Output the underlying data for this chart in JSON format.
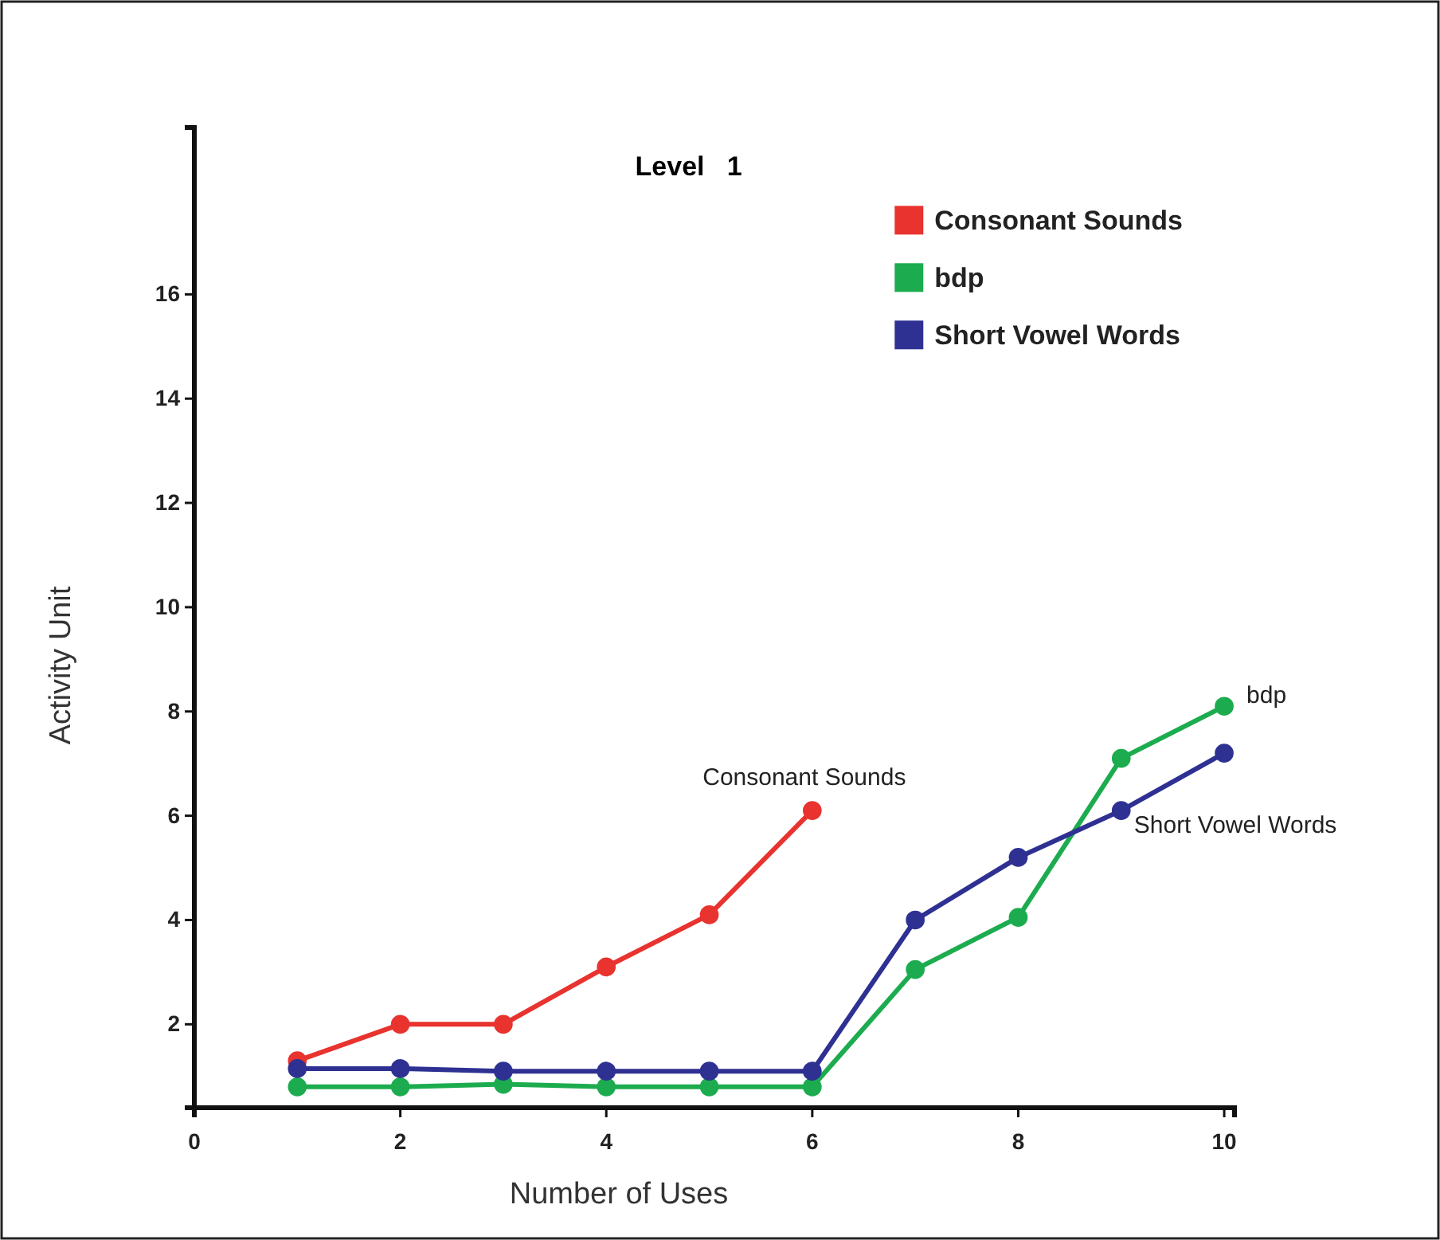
{
  "chart_data": {
    "type": "line",
    "title": "Level   1",
    "xlabel": "Number of Uses",
    "ylabel": "Activity Unit",
    "xlim": [
      0,
      10.1
    ],
    "xticks": [
      0,
      2,
      4,
      6,
      8,
      10
    ],
    "ylim": [
      0.4,
      19.2
    ],
    "yticks": [
      2,
      4,
      6,
      8,
      10,
      12,
      14,
      16
    ],
    "legend": "top right",
    "marker": "circle",
    "line_style": "solid",
    "grid": false,
    "series": [
      {
        "name": "Consonant Sounds",
        "color": "#e8332f",
        "x": [
          1,
          2,
          3,
          4,
          5,
          6
        ],
        "values": [
          1.3,
          2.0,
          2.0,
          3.1,
          4.1,
          6.1
        ]
      },
      {
        "name": "bdp",
        "color": "#1cac4f",
        "x": [
          1,
          2,
          3,
          4,
          5,
          6,
          7,
          8,
          9,
          10
        ],
        "values": [
          0.8,
          0.8,
          0.85,
          0.8,
          0.8,
          0.8,
          3.05,
          4.05,
          7.1,
          8.1
        ]
      },
      {
        "name": "Short Vowel Words",
        "color": "#2e3192",
        "x": [
          1,
          2,
          3,
          4,
          5,
          6,
          7,
          8,
          9,
          10
        ],
        "values": [
          1.15,
          1.15,
          1.1,
          1.1,
          1.1,
          1.1,
          4.0,
          5.2,
          6.1,
          7.2
        ]
      }
    ],
    "annotations": [
      {
        "text": "Consonant Sounds",
        "x": 6,
        "y": 6.1
      },
      {
        "text": "bdp",
        "x": 10,
        "y": 8.1
      },
      {
        "text": "Short Vowel Words",
        "x": 9,
        "y": 6.1
      }
    ]
  }
}
